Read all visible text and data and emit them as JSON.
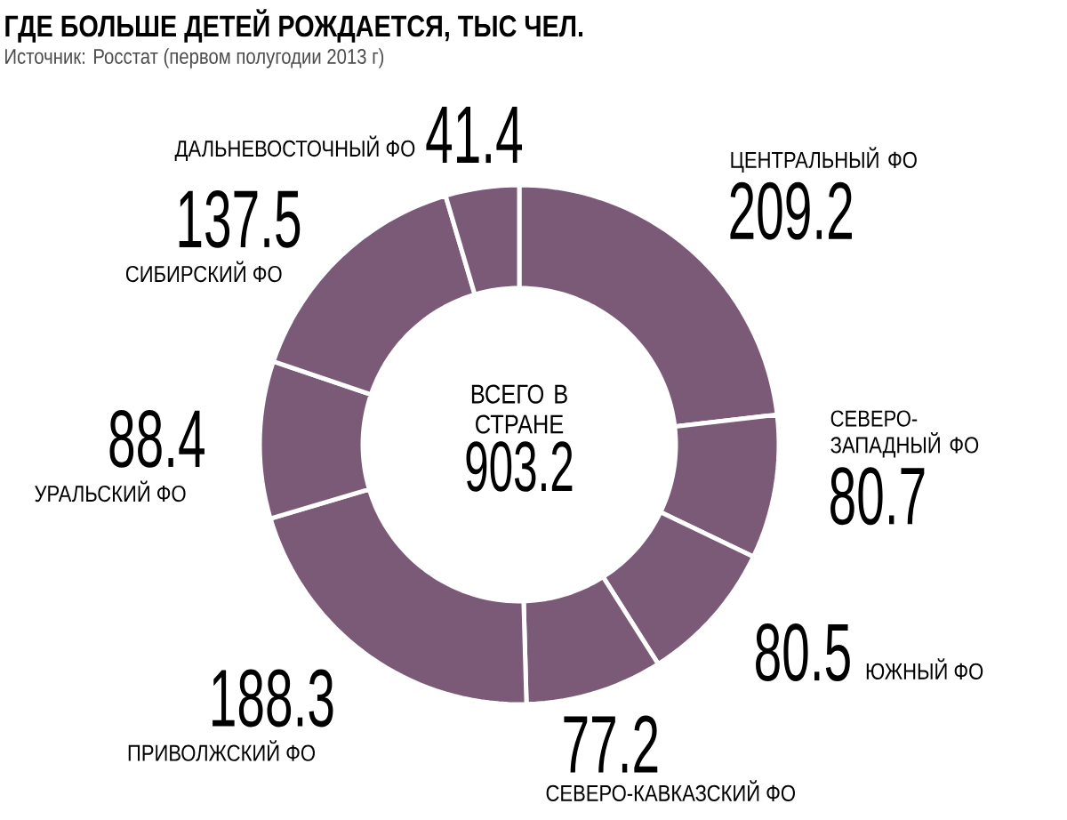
{
  "chart_data": {
    "type": "donut",
    "title": "ГДЕ БОЛЬШЕ ДЕТЕЙ РОЖДАЕТСЯ, ТЫС ЧЕЛ.",
    "subtitle": "Источник: Росстат (первом полугодии 2013 г)",
    "categories": [
      "ЦЕНТРАЛЬНЫЙ ФО",
      "СЕВЕРО-ЗАПАДНЫЙ ФО",
      "ЮЖНЫЙ ФО",
      "СЕВЕРО-КАВКАЗСКИЙ ФО",
      "ПРИВОЛЖСКИЙ ФО",
      "УРАЛЬСКИЙ ФО",
      "СИБИРСКИЙ ФО",
      "ДАЛЬНЕВОСТОЧНЫЙ ФО"
    ],
    "values": [
      209.2,
      80.7,
      80.5,
      77.2,
      188.3,
      88.4,
      137.5,
      41.4
    ],
    "colors": [
      "#7b5a78",
      "#7b5a78",
      "#7b5a78",
      "#7b5a78",
      "#7b5a78",
      "#7b5a78",
      "#7b5a78",
      "#7b5a78"
    ],
    "data_labels": true,
    "annotations": [
      "ВСЕГО В СТРАНЕ",
      "903.2"
    ]
  }
}
